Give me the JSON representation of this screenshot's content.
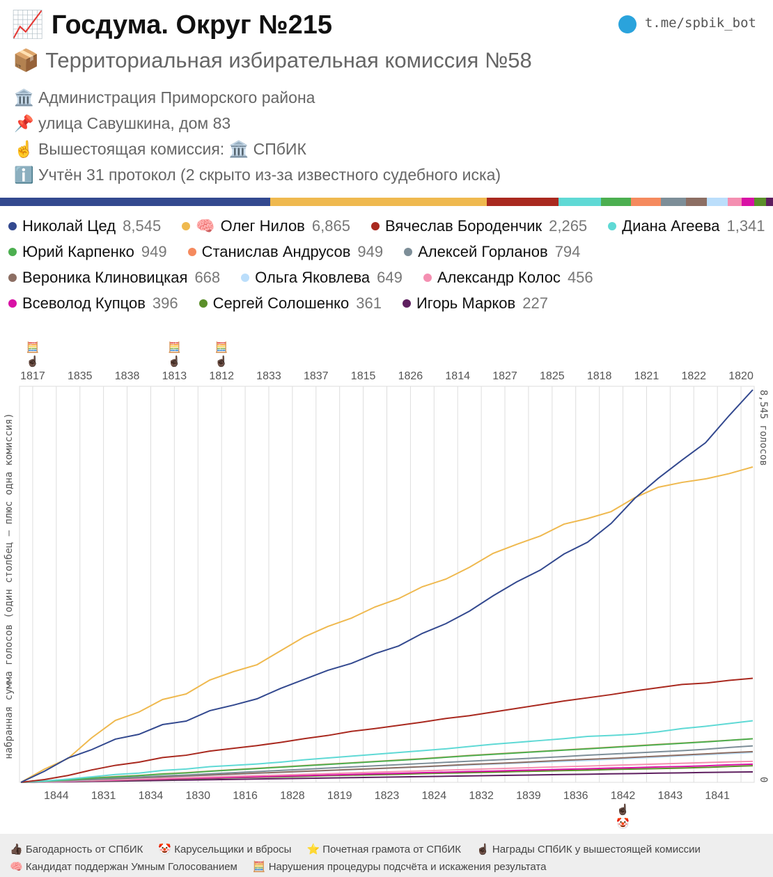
{
  "header": {
    "title": "📈 Госдума. Округ №215",
    "link": "t.me/spbik_bot",
    "subtitle": "📦 Территориальная избирательная комиссия №58",
    "info": [
      "🏛️ Администрация Приморского района",
      "📌 улица Савушкина, дом 83",
      "☝️ Вышестоящая комиссия: 🏛️ СПбИК",
      "ℹ️ Учтён 31 протокол (2 скрыто из-за известного судебного иска)"
    ]
  },
  "chart_data": {
    "type": "line",
    "y_label": "набранная сумма голосов (один столбец — плюс одна комиссия)",
    "right_top_label": "8,545 голосов",
    "right_bottom_label": "0",
    "ylim": [
      0,
      8545
    ],
    "categories": [
      "1817",
      "1844",
      "1835",
      "1831",
      "1838",
      "1834",
      "1813",
      "1830",
      "1812",
      "1816",
      "1833",
      "1828",
      "1837",
      "1819",
      "1815",
      "1823",
      "1826",
      "1824",
      "1814",
      "1832",
      "1827",
      "1839",
      "1825",
      "1836",
      "1818",
      "1842",
      "1821",
      "1843",
      "1822",
      "1841",
      "1820"
    ],
    "icons": [
      "🧮 ☝🏿",
      "☝🏿",
      "☝🏿",
      "☝🏿",
      "☝🏿",
      "☝🏿",
      "🧮 ☝🏿",
      "☝🏿",
      "🧮 ☝🏿",
      "👍🏿",
      "☝🏿",
      "☝🏿",
      "☝🏿",
      "☝🏿",
      "☝🏿",
      "👍🏿",
      "☝🏿",
      "☝🏿",
      "👍🏿",
      "⭐",
      "👍🏿",
      "👍🏿",
      "👍🏿",
      "⭐",
      "☝🏿",
      "☝🏿 🤡",
      "☝🏿",
      "👍🏿",
      "👍🏿",
      "👍🏿",
      "👍🏿"
    ],
    "series": [
      {
        "name": "Николай Цед",
        "total": 8545,
        "total_label": "8,545",
        "color": "#33498f",
        "values": [
          242,
          530,
          712,
          940,
          1045,
          1257,
          1333,
          1560,
          1681,
          1818,
          2045,
          2242,
          2439,
          2590,
          2802,
          2969,
          3242,
          3454,
          3727,
          4060,
          4363,
          4620,
          4969,
          5226,
          5635,
          6181,
          6620,
          7014,
          7393,
          7984,
          8545
        ]
      },
      {
        "name": "Олег Нилов",
        "badge": "🧠",
        "total": 6865,
        "total_label": "6,865",
        "color": "#efb94f",
        "values": [
          288,
          520,
          970,
          1348,
          1530,
          1803,
          1924,
          2227,
          2409,
          2560,
          2863,
          3166,
          3393,
          3575,
          3818,
          4000,
          4257,
          4424,
          4681,
          4984,
          5181,
          5363,
          5620,
          5742,
          5893,
          6196,
          6424,
          6529,
          6605,
          6720,
          6865
        ]
      },
      {
        "name": "Вячеслав Бороденчик",
        "total": 2265,
        "total_label": "2,265",
        "color": "#a9291f",
        "values": [
          60,
          150,
          270,
          370,
          440,
          540,
          590,
          680,
          740,
          800,
          870,
          950,
          1020,
          1110,
          1170,
          1240,
          1310,
          1390,
          1450,
          1530,
          1610,
          1690,
          1770,
          1840,
          1910,
          1990,
          2060,
          2130,
          2160,
          2220,
          2265
        ]
      },
      {
        "name": "Диана Агеева",
        "total": 1341,
        "total_label": "1,341",
        "color": "#5fd9d5",
        "values": [
          30,
          70,
          120,
          170,
          200,
          260,
          290,
          340,
          370,
          400,
          440,
          490,
          530,
          570,
          610,
          650,
          690,
          730,
          780,
          830,
          870,
          910,
          950,
          1000,
          1020,
          1050,
          1100,
          1170,
          1220,
          1280,
          1341
        ]
      },
      {
        "name": "Юрий Карпенко",
        "total": 949,
        "total_label": "949",
        "color": "#4caf50",
        "values": [
          25,
          55,
          90,
          120,
          145,
          180,
          205,
          240,
          270,
          300,
          330,
          360,
          390,
          420,
          450,
          480,
          510,
          545,
          580,
          610,
          640,
          670,
          700,
          730,
          760,
          790,
          820,
          850,
          880,
          915,
          949
        ]
      },
      {
        "name": "Станислав Андрусов",
        "total": 949,
        "total_label": "949",
        "color": "#f58a5e",
        "values": [
          30,
          60,
          95,
          125,
          150,
          185,
          210,
          245,
          275,
          305,
          335,
          365,
          395,
          425,
          455,
          485,
          515,
          550,
          585,
          615,
          645,
          675,
          705,
          735,
          765,
          795,
          825,
          855,
          885,
          915,
          949
        ]
      },
      {
        "name": "Алексей Горланов",
        "total": 794,
        "total_label": "794",
        "color": "#7d8e98",
        "values": [
          20,
          45,
          70,
          95,
          115,
          140,
          160,
          185,
          210,
          235,
          260,
          285,
          310,
          335,
          360,
          385,
          410,
          435,
          460,
          485,
          510,
          535,
          560,
          590,
          615,
          640,
          665,
          690,
          720,
          760,
          794
        ]
      },
      {
        "name": "Вероника Клиновицкая",
        "total": 668,
        "total_label": "668",
        "color": "#8c6e63",
        "values": [
          20,
          40,
          60,
          80,
          100,
          120,
          140,
          160,
          180,
          200,
          220,
          240,
          260,
          280,
          300,
          320,
          340,
          365,
          390,
          410,
          430,
          455,
          480,
          500,
          520,
          545,
          570,
          595,
          620,
          645,
          668
        ]
      },
      {
        "name": "Ольга Яковлева",
        "total": 649,
        "total_label": "649",
        "color": "#bbdefb",
        "values": [
          15,
          35,
          55,
          75,
          95,
          115,
          135,
          155,
          175,
          195,
          215,
          235,
          255,
          275,
          295,
          315,
          335,
          355,
          375,
          395,
          415,
          435,
          455,
          475,
          500,
          525,
          550,
          575,
          600,
          625,
          649
        ]
      },
      {
        "name": "Александр Колос",
        "total": 456,
        "total_label": "456",
        "color": "#f48fb1",
        "values": [
          10,
          25,
          40,
          55,
          70,
          85,
          100,
          115,
          130,
          145,
          160,
          175,
          190,
          205,
          220,
          235,
          250,
          265,
          280,
          295,
          310,
          325,
          340,
          355,
          370,
          385,
          400,
          415,
          430,
          445,
          456
        ]
      },
      {
        "name": "Всеволод Купцов",
        "total": 396,
        "total_label": "396",
        "color": "#d811a5",
        "values": [
          10,
          20,
          35,
          45,
          60,
          70,
          85,
          95,
          110,
          120,
          135,
          145,
          160,
          170,
          185,
          195,
          210,
          220,
          235,
          245,
          260,
          270,
          285,
          295,
          310,
          320,
          335,
          345,
          360,
          380,
          396
        ]
      },
      {
        "name": "Сергей Солошенко",
        "total": 361,
        "total_label": "361",
        "color": "#5b8f2a",
        "values": [
          10,
          20,
          30,
          40,
          55,
          65,
          75,
          85,
          100,
          110,
          120,
          130,
          145,
          155,
          165,
          175,
          190,
          200,
          210,
          220,
          235,
          245,
          255,
          265,
          280,
          290,
          300,
          310,
          325,
          345,
          361
        ]
      },
      {
        "name": "Игорь Марков",
        "total": 227,
        "total_label": "227",
        "color": "#5e1f5f",
        "values": [
          5,
          12,
          20,
          27,
          35,
          42,
          50,
          57,
          65,
          72,
          80,
          87,
          95,
          102,
          110,
          117,
          125,
          132,
          140,
          147,
          155,
          162,
          170,
          177,
          185,
          192,
          200,
          207,
          215,
          222,
          227
        ]
      }
    ]
  },
  "footer": [
    "👍🏿 Багодарность от СПбИК",
    "🤡 Карусельщики и вбросы",
    "⭐ Почетная грамота от СПбИК",
    "☝🏿 Награды СПбИК у вышестоящей комиссии",
    "🧠 Кандидат поддержан Умным Голосованием",
    "🧮 Нарушения процедуры подсчёта и искажения результата"
  ]
}
